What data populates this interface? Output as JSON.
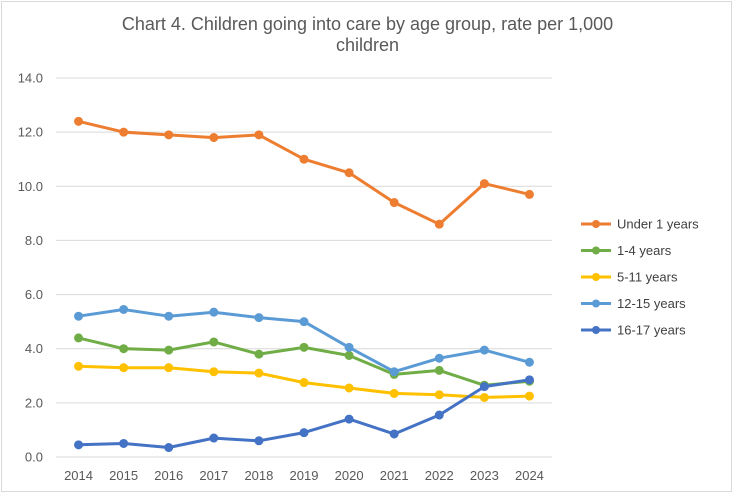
{
  "chart_data": {
    "type": "line",
    "title_line1": "Chart 4. Children going into care by age group, rate per 1,000",
    "title_line2": "children",
    "xlabel": "",
    "ylabel": "",
    "categories": [
      "2014",
      "2015",
      "2016",
      "2017",
      "2018",
      "2019",
      "2020",
      "2021",
      "2022",
      "2023",
      "2024"
    ],
    "ylim": [
      0,
      14
    ],
    "yticks": [
      "0.0",
      "2.0",
      "4.0",
      "6.0",
      "8.0",
      "10.0",
      "12.0",
      "14.0"
    ],
    "grid": true,
    "legend_position": "right",
    "series": [
      {
        "name": "Under 1 years",
        "color": "#ed7d31",
        "values": [
          12.4,
          12.0,
          11.9,
          11.8,
          11.9,
          11.0,
          10.5,
          9.4,
          8.6,
          10.1,
          9.7
        ]
      },
      {
        "name": "1-4 years",
        "color": "#70ad47",
        "values": [
          4.4,
          4.0,
          3.95,
          4.25,
          3.8,
          4.05,
          3.75,
          3.05,
          3.2,
          2.65,
          2.8
        ]
      },
      {
        "name": "5-11 years",
        "color": "#ffc000",
        "values": [
          3.35,
          3.3,
          3.3,
          3.15,
          3.1,
          2.75,
          2.55,
          2.35,
          2.3,
          2.2,
          2.25
        ]
      },
      {
        "name": "12-15 years",
        "color": "#5b9bd5",
        "values": [
          5.2,
          5.45,
          5.2,
          5.35,
          5.15,
          5.0,
          4.05,
          3.15,
          3.65,
          3.95,
          3.5
        ]
      },
      {
        "name": "16-17 years",
        "color": "#4472c4",
        "values": [
          0.45,
          0.5,
          0.35,
          0.7,
          0.6,
          0.9,
          1.4,
          0.85,
          1.55,
          2.6,
          2.85
        ]
      }
    ]
  }
}
